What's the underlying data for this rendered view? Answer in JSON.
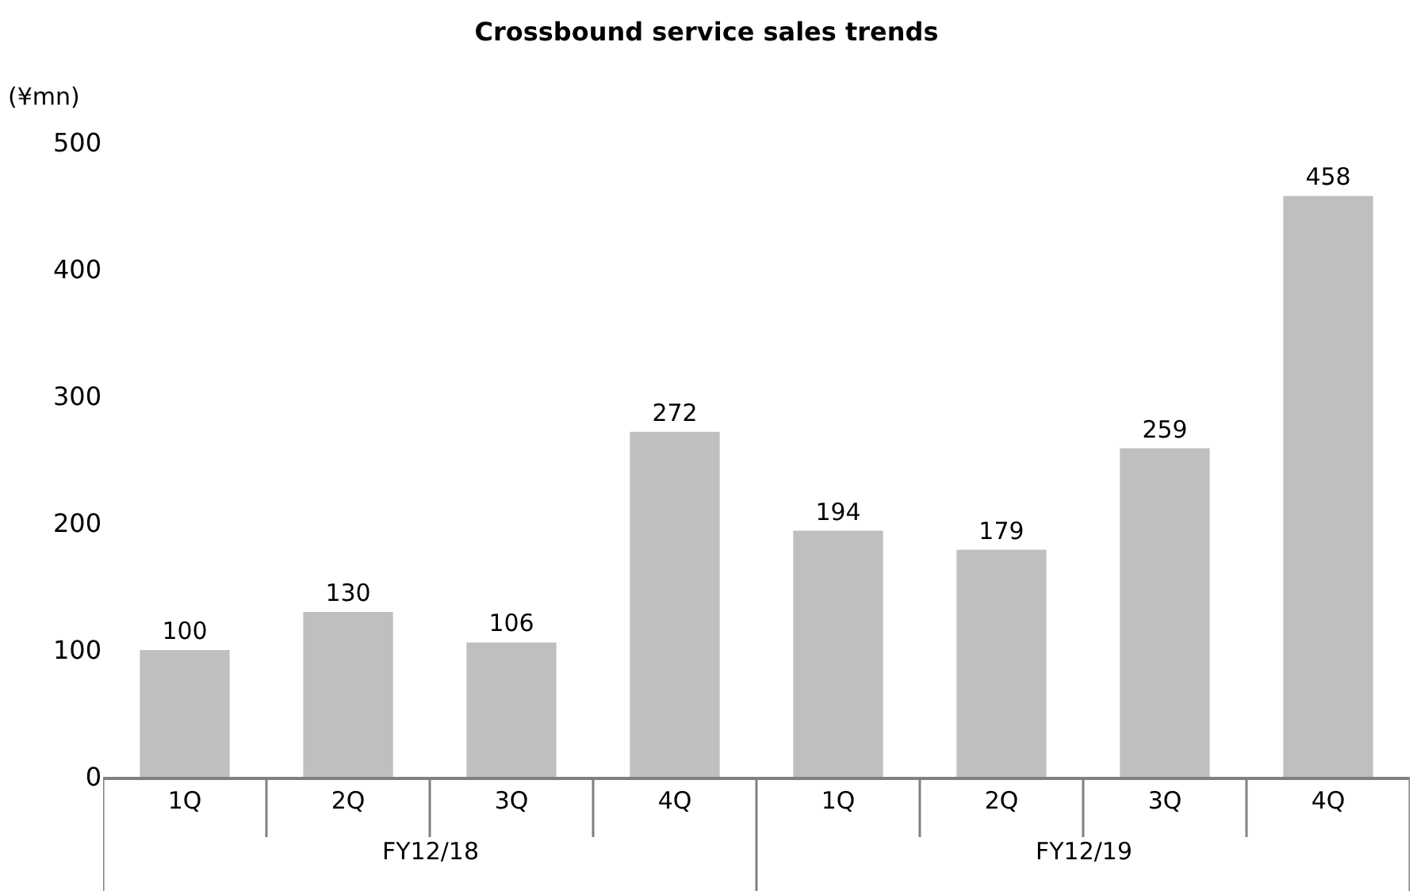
{
  "chart_data": {
    "type": "bar",
    "title": "Crossbound service sales trends",
    "ylabel": "(¥mn)",
    "categories": [
      "1Q",
      "2Q",
      "3Q",
      "4Q",
      "1Q",
      "2Q",
      "3Q",
      "4Q"
    ],
    "series": [
      {
        "color": "#bfbfbf",
        "values": [
          100,
          130,
          106,
          272,
          194,
          179,
          259,
          458
        ]
      }
    ],
    "annotations": [
      "FY12/18",
      "FY12/19"
    ],
    "ylim": [
      0,
      500
    ],
    "yticks": [
      0,
      100,
      200,
      300,
      400,
      500
    ],
    "data_labels": true
  }
}
